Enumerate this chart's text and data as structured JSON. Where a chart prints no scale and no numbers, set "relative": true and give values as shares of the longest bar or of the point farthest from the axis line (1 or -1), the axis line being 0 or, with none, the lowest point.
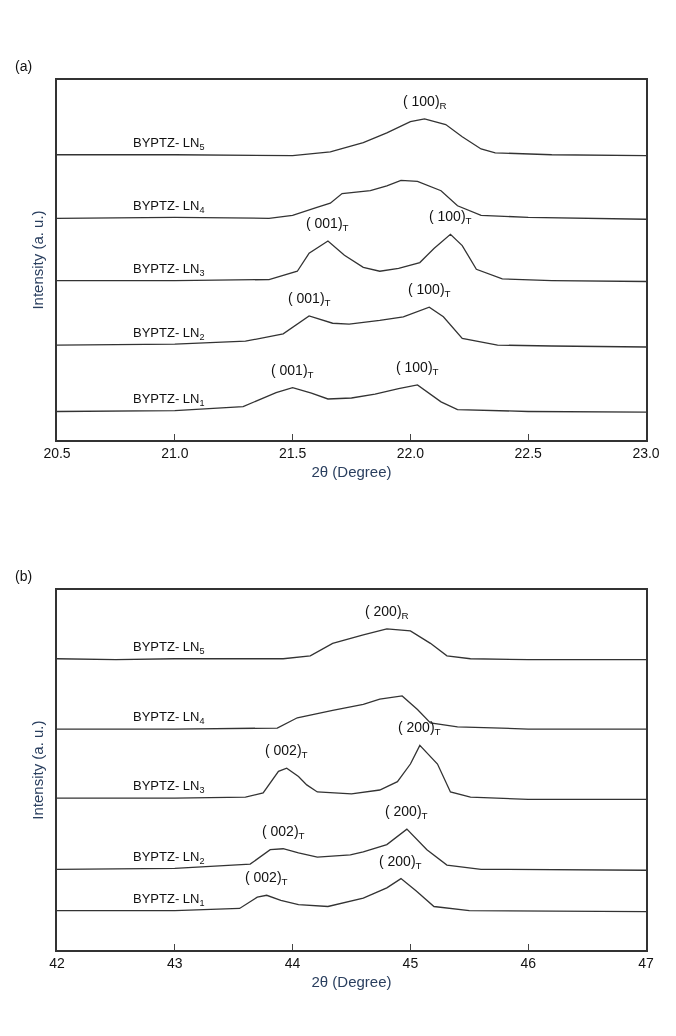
{
  "chart_data": [
    {
      "type": "line",
      "relative": true,
      "tick_labels": "x",
      "xlabel": "2θ (Degree)",
      "ylabel": "Intensity (a. u.)",
      "xlim": [
        20.5,
        23.0
      ],
      "xticks": [
        20.5,
        {
          "value": 21,
          "label": "21.0"
        },
        21.5,
        {
          "value": 22,
          "label": "22.0"
        },
        22.5,
        {
          "value": 23,
          "label": "23.0"
        }
      ],
      "annotations": [
        "(a)",
        {
          "text": "( 100)$_{R}$",
          "x": 22.06,
          "y": 1.0
        },
        {
          "text": "( 001)$_{T}$",
          "x": 21.65,
          "y": 0.619
        },
        {
          "text": "( 100)$_{T}$",
          "x": 22.17,
          "y": 0.64
        },
        {
          "text": "( 001)$_{T}$",
          "x": 21.57,
          "y": 0.386
        },
        {
          "text": "( 100)$_{T}$",
          "x": 22.08,
          "y": 0.413
        },
        {
          "text": "( 001)$_{T}$",
          "x": 21.5,
          "y": 0.162
        },
        {
          "text": "( 100)$_{T}$",
          "x": 22.03,
          "y": 0.171
        }
      ],
      "series": [
        {
          "name": "BYPTZ- LN$_{5}$",
          "color": "#333333",
          "x": [
            20.5,
            21.0,
            21.5,
            21.66,
            21.8,
            21.9,
            22.0,
            22.06,
            22.15,
            22.22,
            22.3,
            22.36,
            22.6,
            23.0
          ],
          "values": [
            0.888,
            0.888,
            0.885,
            0.897,
            0.926,
            0.956,
            0.991,
            1.0,
            0.982,
            0.944,
            0.906,
            0.894,
            0.888,
            0.885
          ]
        },
        {
          "name": "BYPTZ- LN$_{4}$",
          "color": "#333333",
          "x": [
            20.5,
            21.0,
            21.4,
            21.5,
            21.6,
            21.66,
            21.71,
            21.83,
            21.9,
            21.96,
            22.03,
            22.13,
            22.2,
            22.3,
            22.5,
            23.0
          ],
          "values": [
            0.69,
            0.693,
            0.69,
            0.699,
            0.723,
            0.737,
            0.767,
            0.776,
            0.791,
            0.808,
            0.805,
            0.776,
            0.729,
            0.699,
            0.693,
            0.687
          ]
        },
        {
          "name": "BYPTZ- LN$_{3}$",
          "color": "#333333",
          "x": [
            20.5,
            21.0,
            21.4,
            21.52,
            21.57,
            21.65,
            21.72,
            21.8,
            21.87,
            21.95,
            22.04,
            22.1,
            22.17,
            22.22,
            22.28,
            22.39,
            22.6,
            23.0
          ],
          "values": [
            0.496,
            0.496,
            0.499,
            0.525,
            0.581,
            0.619,
            0.575,
            0.537,
            0.525,
            0.534,
            0.552,
            0.596,
            0.64,
            0.605,
            0.531,
            0.501,
            0.496,
            0.493
          ]
        },
        {
          "name": "BYPTZ- LN$_{2}$",
          "color": "#333333",
          "x": [
            20.5,
            21.0,
            21.3,
            21.46,
            21.57,
            21.67,
            21.74,
            21.87,
            21.97,
            22.08,
            22.14,
            22.22,
            22.37,
            22.6,
            23.0
          ],
          "values": [
            0.295,
            0.298,
            0.307,
            0.33,
            0.386,
            0.363,
            0.36,
            0.372,
            0.383,
            0.413,
            0.383,
            0.316,
            0.295,
            0.292,
            0.289
          ]
        },
        {
          "name": "BYPTZ- LN$_{1}$",
          "color": "#333333",
          "x": [
            20.5,
            21.0,
            21.29,
            21.43,
            21.5,
            21.58,
            21.65,
            21.75,
            21.85,
            21.95,
            22.03,
            22.13,
            22.2,
            22.5,
            23.0
          ],
          "values": [
            0.088,
            0.091,
            0.103,
            0.147,
            0.162,
            0.145,
            0.127,
            0.13,
            0.142,
            0.159,
            0.171,
            0.118,
            0.094,
            0.088,
            0.086
          ]
        }
      ]
    },
    {
      "type": "line",
      "relative": true,
      "tick_labels": "x",
      "xlabel": "2θ (Degree)",
      "ylabel": "Intensity (a. u.)",
      "xlim": [
        42,
        47
      ],
      "xticks": [
        42,
        43,
        44,
        45,
        46,
        47
      ],
      "annotations": [
        "(b)",
        {
          "text": "( 200)$_{R}$",
          "x": 44.8,
          "y": 1.0
        },
        {
          "text": "( 002)$_{T}$",
          "x": 43.95,
          "y": 0.566
        },
        {
          "text": "( 200)$_{T}$",
          "x": 45.08,
          "y": 0.637
        },
        {
          "text": "( 002)$_{T}$",
          "x": 43.92,
          "y": 0.315
        },
        {
          "text": "( 200)$_{T}$",
          "x": 44.97,
          "y": 0.376
        },
        {
          "text": "( 002)$_{T}$",
          "x": 43.78,
          "y": 0.17
        },
        {
          "text": "( 200)$_{T}$",
          "x": 44.92,
          "y": 0.222
        }
      ],
      "series": [
        {
          "name": "BYPTZ- LN$_{5}$",
          "color": "#333333",
          "x": [
            42,
            42.5,
            43,
            43.5,
            43.92,
            44.15,
            44.34,
            44.6,
            44.8,
            45.0,
            45.17,
            45.31,
            45.51,
            46,
            47
          ],
          "values": [
            0.907,
            0.904,
            0.907,
            0.907,
            0.907,
            0.916,
            0.955,
            0.981,
            1.0,
            0.994,
            0.955,
            0.916,
            0.907,
            0.904,
            0.904
          ]
        },
        {
          "name": "BYPTZ- LN$_{4}$",
          "color": "#333333",
          "x": [
            42,
            43,
            43.87,
            44.04,
            44.34,
            44.6,
            44.74,
            44.93,
            45.06,
            45.17,
            45.4,
            46,
            47
          ],
          "values": [
            0.688,
            0.688,
            0.691,
            0.723,
            0.746,
            0.765,
            0.781,
            0.791,
            0.749,
            0.707,
            0.695,
            0.688,
            0.688
          ]
        },
        {
          "name": "BYPTZ- LN$_{3}$",
          "color": "#333333",
          "x": [
            42,
            43,
            43.6,
            43.75,
            43.88,
            43.95,
            44.05,
            44.12,
            44.21,
            44.5,
            44.74,
            44.89,
            45.0,
            45.08,
            45.23,
            45.34,
            45.51,
            46,
            47
          ],
          "values": [
            0.473,
            0.473,
            0.476,
            0.489,
            0.556,
            0.566,
            0.54,
            0.514,
            0.492,
            0.486,
            0.498,
            0.524,
            0.579,
            0.637,
            0.579,
            0.492,
            0.476,
            0.469,
            0.469
          ]
        },
        {
          "name": "BYPTZ- LN$_{2}$",
          "color": "#333333",
          "x": [
            42,
            43,
            43.64,
            43.81,
            43.92,
            44.05,
            44.21,
            44.49,
            44.6,
            44.8,
            44.97,
            45.14,
            45.31,
            45.6,
            47
          ],
          "values": [
            0.251,
            0.254,
            0.267,
            0.312,
            0.315,
            0.302,
            0.289,
            0.296,
            0.305,
            0.328,
            0.376,
            0.312,
            0.264,
            0.251,
            0.248
          ]
        },
        {
          "name": "BYPTZ- LN$_{1}$",
          "color": "#333333",
          "x": [
            42,
            43,
            43.55,
            43.7,
            43.78,
            43.9,
            44.05,
            44.3,
            44.6,
            44.8,
            44.92,
            45.05,
            45.2,
            45.5,
            47
          ],
          "values": [
            0.122,
            0.122,
            0.129,
            0.164,
            0.17,
            0.154,
            0.141,
            0.135,
            0.161,
            0.193,
            0.222,
            0.183,
            0.135,
            0.122,
            0.119
          ]
        }
      ]
    }
  ]
}
